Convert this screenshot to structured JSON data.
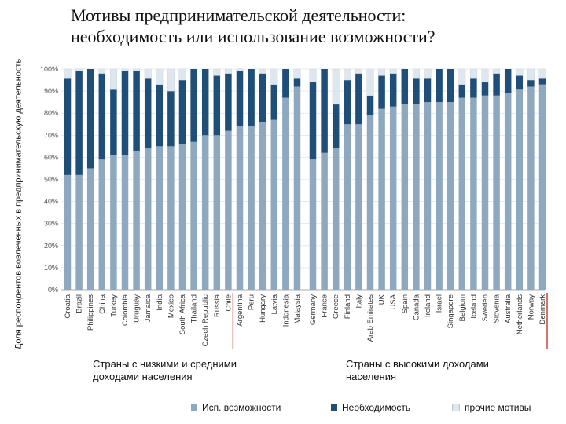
{
  "title_line1": "Мотивы предпринимательской деятельности:",
  "title_line2": "необходимость или использование возможности?",
  "chart_data": {
    "type": "bar",
    "stacked": true,
    "ylabel": "Доля респондентов вовлеченных в предпринимательскую деятельность",
    "ylim": [
      0,
      100
    ],
    "yticks": [
      "0%",
      "10%",
      "20%",
      "30%",
      "40%",
      "50%",
      "60%",
      "70%",
      "80%",
      "90%",
      "100%"
    ],
    "colors": {
      "opportunity": "#8ea9bf",
      "necessity": "#1f4e79",
      "other": "#dfe7ee"
    },
    "groups": [
      {
        "label": "Страны с низкими и средними доходами населения",
        "categories": [
          "Croatia",
          "Brazil",
          "Philippines",
          "China",
          "Turkey",
          "Colombia",
          "Uruguay",
          "Jamaica",
          "India",
          "Mexico",
          "South Africa",
          "Thailand",
          "Czech Republic",
          "Russia",
          "Chile",
          "Argentina",
          "Peru",
          "Hungary",
          "Latvia",
          "Indonesia",
          "Malaysia"
        ],
        "series": [
          {
            "name": "Исп. возможности",
            "values": [
              52,
              52,
              55,
              59,
              61,
              61,
              63,
              64,
              65,
              65,
              66,
              67,
              70,
              70,
              72,
              74,
              74,
              76,
              77,
              87,
              92
            ]
          },
          {
            "name": "Необходимость",
            "values": [
              44,
              47,
              45,
              39,
              30,
              38,
              36,
              32,
              28,
              25,
              29,
              33,
              30,
              27,
              26,
              25,
              26,
              22,
              16,
              13,
              4
            ]
          },
          {
            "name": "прочие мотивы",
            "values": [
              4,
              1,
              0,
              2,
              9,
              1,
              1,
              4,
              7,
              10,
              5,
              0,
              0,
              3,
              2,
              1,
              0,
              2,
              7,
              0,
              4
            ]
          }
        ]
      },
      {
        "label": "Страны с высокими доходами населения",
        "categories": [
          "Germany",
          "France",
          "Greece",
          "Finland",
          "Italy",
          "Arab Emirates",
          "UK",
          "USA",
          "Spain",
          "Canada",
          "Ireland",
          "Israel",
          "Singapore",
          "Belgium",
          "Iceland",
          "Sweden",
          "Slovenia",
          "Australia",
          "Netherlands",
          "Norway",
          "Denmark"
        ],
        "series": [
          {
            "name": "Исп. возможности",
            "values": [
              59,
              62,
              64,
              75,
              75,
              79,
              82,
              83,
              84,
              84,
              85,
              85,
              85,
              87,
              87,
              88,
              88,
              89,
              91,
              92,
              93
            ]
          },
          {
            "name": "Необходимость",
            "values": [
              35,
              38,
              20,
              20,
              23,
              9,
              15,
              15,
              16,
              12,
              11,
              15,
              15,
              6,
              9,
              6,
              10,
              11,
              6,
              3,
              3
            ]
          },
          {
            "name": "прочие мотивы",
            "values": [
              6,
              0,
              16,
              5,
              2,
              12,
              3,
              2,
              0,
              4,
              4,
              0,
              0,
              7,
              4,
              6,
              2,
              0,
              3,
              5,
              4
            ]
          }
        ]
      }
    ],
    "legend": [
      "Исп. возможности",
      "Необходимость",
      "прочие мотивы"
    ]
  }
}
